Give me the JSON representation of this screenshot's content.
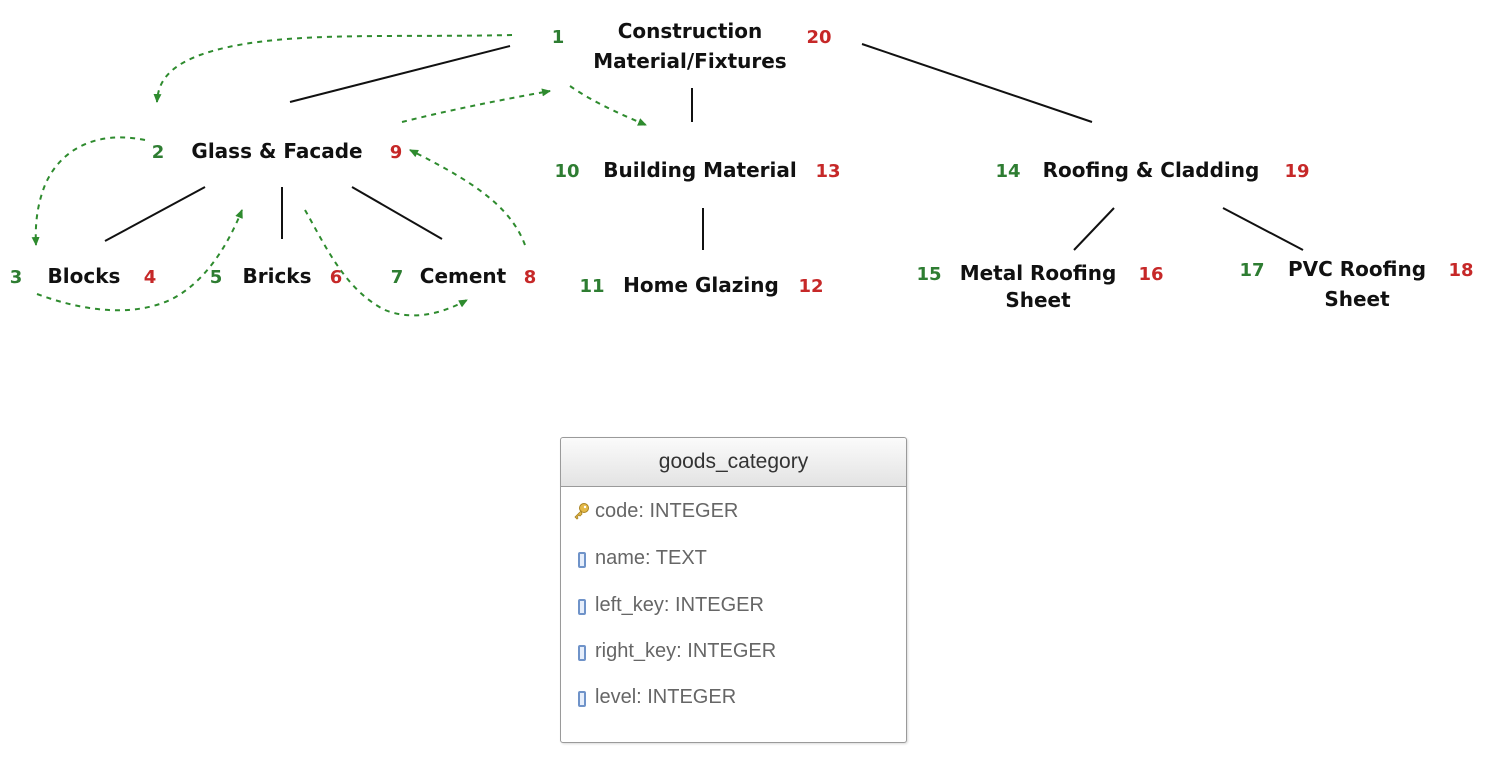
{
  "tree": {
    "nodes": [
      {
        "id": "construction",
        "name_lines": [
          "Construction",
          "Material/Fixtures"
        ],
        "left": "1",
        "right": "20"
      },
      {
        "id": "glass",
        "name_lines": [
          "Glass & Facade"
        ],
        "left": "2",
        "right": "9"
      },
      {
        "id": "blocks",
        "name_lines": [
          "Blocks"
        ],
        "left": "3",
        "right": "4"
      },
      {
        "id": "bricks",
        "name_lines": [
          "Bricks"
        ],
        "left": "5",
        "right": "6"
      },
      {
        "id": "cement",
        "name_lines": [
          "Cement"
        ],
        "left": "7",
        "right": "8"
      },
      {
        "id": "building",
        "name_lines": [
          "Building Material"
        ],
        "left": "10",
        "right": "13"
      },
      {
        "id": "homeglazing",
        "name_lines": [
          "Home Glazing"
        ],
        "left": "11",
        "right": "12"
      },
      {
        "id": "roofing",
        "name_lines": [
          "Roofing & Cladding"
        ],
        "left": "14",
        "right": "19"
      },
      {
        "id": "metal",
        "name_lines": [
          "Metal Roofing",
          "Sheet"
        ],
        "left": "15",
        "right": "16"
      },
      {
        "id": "pvc",
        "name_lines": [
          "PVC Roofing",
          "Sheet"
        ],
        "left": "17",
        "right": "18"
      }
    ],
    "edges": [
      {
        "from": "construction",
        "to": "glass"
      },
      {
        "from": "construction",
        "to": "building"
      },
      {
        "from": "construction",
        "to": "roofing"
      },
      {
        "from": "glass",
        "to": "blocks"
      },
      {
        "from": "glass",
        "to": "bricks"
      },
      {
        "from": "glass",
        "to": "cement"
      },
      {
        "from": "building",
        "to": "homeglazing"
      },
      {
        "from": "roofing",
        "to": "metal"
      },
      {
        "from": "roofing",
        "to": "pvc"
      }
    ]
  },
  "table": {
    "name": "goods_category",
    "fields": [
      {
        "label": "code: INTEGER",
        "icon": "key-icon"
      },
      {
        "label": "name: TEXT",
        "icon": "column-icon"
      },
      {
        "label": "left_key: INTEGER",
        "icon": "column-icon"
      },
      {
        "label": "right_key: INTEGER",
        "icon": "column-icon"
      },
      {
        "label": "level: INTEGER",
        "icon": "column-icon"
      }
    ]
  },
  "colors": {
    "left_number": "#2e7d32",
    "right_number": "#c62828",
    "traversal_arrow": "#2e8b2e",
    "edge": "#111111"
  }
}
